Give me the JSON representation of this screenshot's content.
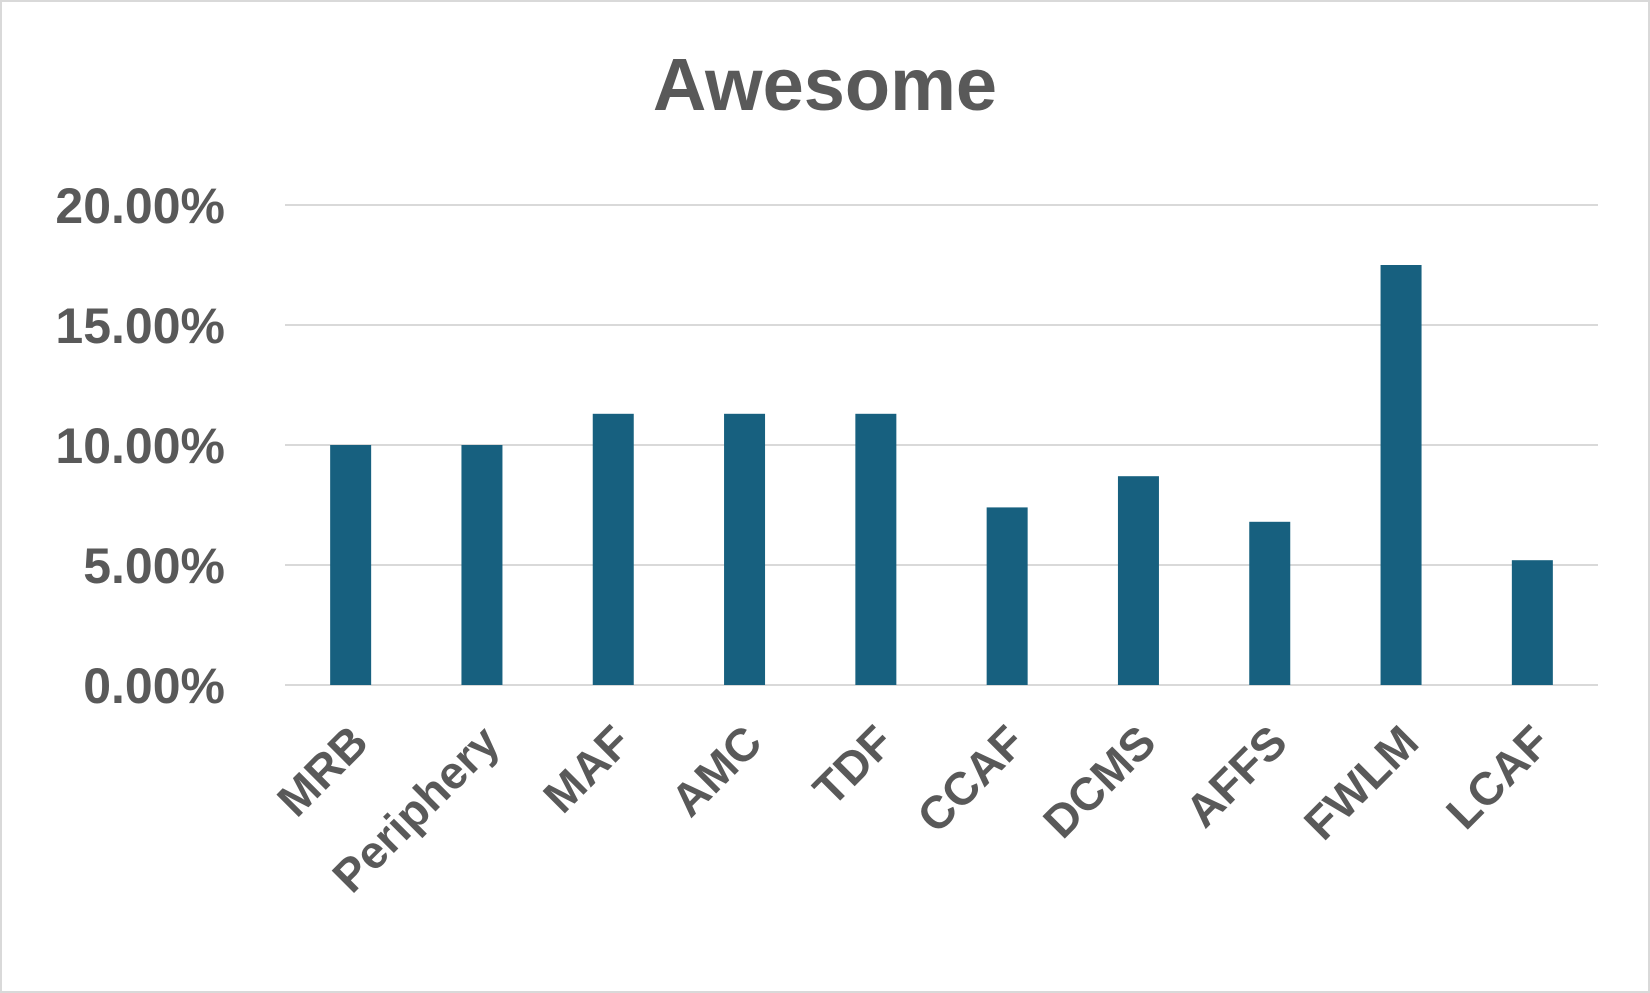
{
  "chart_data": {
    "type": "bar",
    "title": "Awesome",
    "xlabel": "",
    "ylabel": "",
    "categories": [
      "MRB",
      "Periphery",
      "MAF",
      "AMC",
      "TDF",
      "CCAF",
      "DCMS",
      "AFFS",
      "FWLM",
      "LCAF"
    ],
    "values": [
      0.1,
      0.1,
      0.113,
      0.113,
      0.113,
      0.074,
      0.087,
      0.068,
      0.175,
      0.052
    ],
    "ylim": [
      0,
      0.2
    ],
    "yticks": [
      0,
      0.05,
      0.1,
      0.15,
      0.2
    ],
    "ytick_labels": [
      "0.00%",
      "5.00%",
      "10.00%",
      "15.00%",
      "20.00%"
    ],
    "bar_color": "#17607f",
    "grid": true,
    "legend": "none"
  }
}
